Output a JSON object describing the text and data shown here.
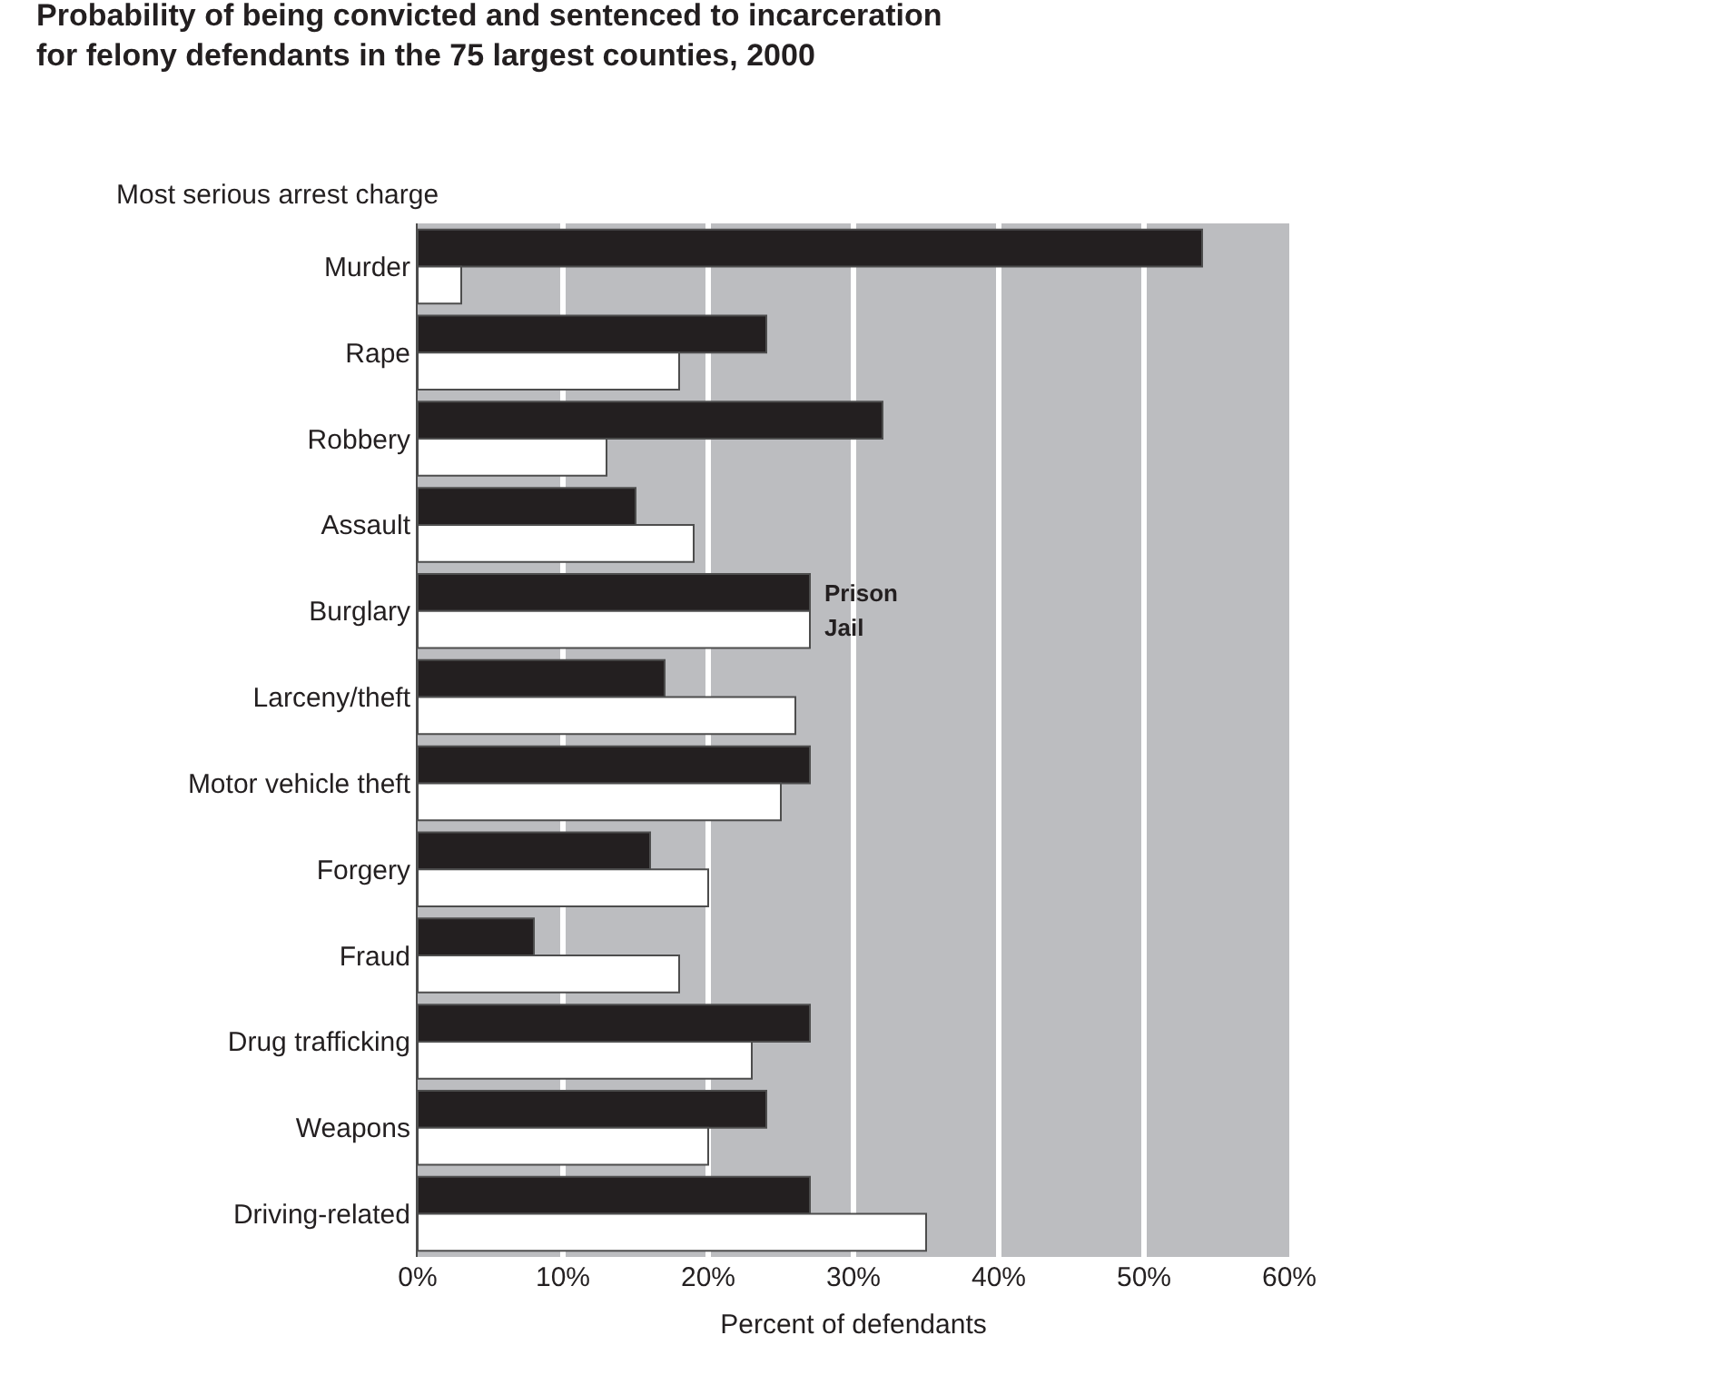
{
  "chart_data": {
    "type": "bar",
    "orientation": "horizontal",
    "title": "Probability of being convicted and sentenced to incarceration for felony defendants in the 75 largest counties, 2000",
    "xlabel": "Percent of defendants",
    "ylabel": "Most serious arrest charge",
    "categories": [
      "Murder",
      "Rape",
      "Robbery",
      "Assault",
      "Burglary",
      "Larceny/theft",
      "Motor vehicle theft",
      "Forgery",
      "Fraud",
      "Drug trafficking",
      "Weapons",
      "Driving-related"
    ],
    "series": [
      {
        "name": "Prison",
        "color": "#231f20",
        "values": [
          54,
          24,
          32,
          15,
          27,
          17,
          27,
          16,
          8,
          27,
          24,
          27
        ]
      },
      {
        "name": "Jail",
        "color": "#ffffff",
        "values": [
          3,
          18,
          13,
          19,
          27,
          26,
          25,
          20,
          18,
          23,
          20,
          35
        ]
      }
    ],
    "xlim": [
      0,
      60
    ],
    "xticks": [
      {
        "value": 0,
        "label": "0%"
      },
      {
        "value": 10,
        "label": "10%"
      },
      {
        "value": 20,
        "label": "20%"
      },
      {
        "value": 30,
        "label": "30%"
      },
      {
        "value": 40,
        "label": "40%"
      },
      {
        "value": 50,
        "label": "50%"
      },
      {
        "value": 60,
        "label": "60%"
      }
    ],
    "grid": "x",
    "legend": false
  }
}
